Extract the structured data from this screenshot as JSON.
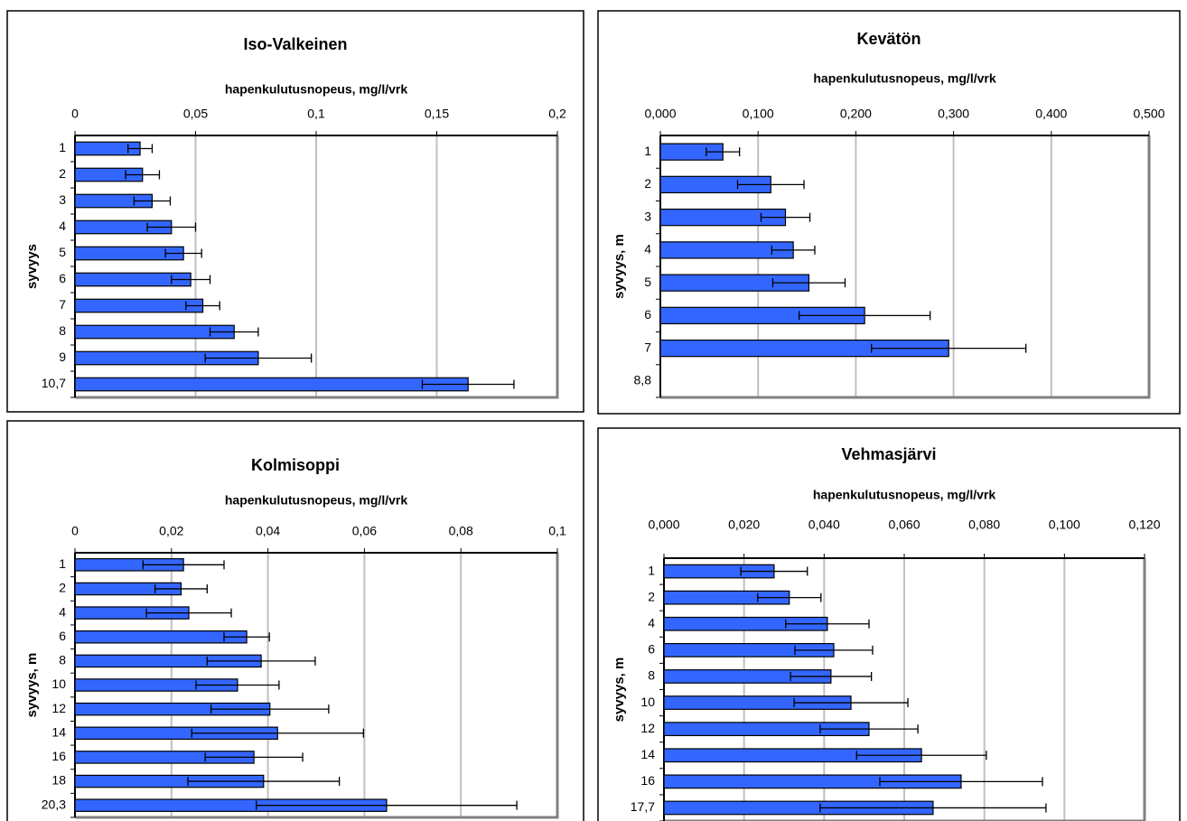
{
  "chart_data": [
    {
      "type": "bar",
      "orientation": "horizontal",
      "title": "Iso-Valkeinen",
      "x_label": "hapenkulutusnopeus,  mg/l/vrk",
      "y_label": "syvyys",
      "categories": [
        "1",
        "2",
        "3",
        "4",
        "5",
        "6",
        "7",
        "8",
        "9",
        "10,7"
      ],
      "values": [
        0.027,
        0.028,
        0.032,
        0.04,
        0.045,
        0.048,
        0.053,
        0.066,
        0.076,
        0.163
      ],
      "errors": [
        0.005,
        0.007,
        0.0075,
        0.01,
        0.0075,
        0.008,
        0.007,
        0.01,
        0.022,
        0.019
      ],
      "color": "#3366ff",
      "grid": true,
      "xlim": [
        0,
        0.2
      ],
      "xticks": [
        0,
        {
          "value": 0.05,
          "label": "0,05"
        },
        {
          "value": 0.1,
          "label": "0,1"
        },
        {
          "value": 0.15,
          "label": "0,15"
        },
        {
          "value": 0.2,
          "label": "0,2"
        }
      ]
    },
    {
      "type": "bar",
      "orientation": "horizontal",
      "title": "Kevätön",
      "x_label": "hapenkulutusnopeus,  mg/l/vrk",
      "y_label": "syvyys, m",
      "categories": [
        "1",
        "2",
        "3",
        "4",
        "5",
        "6",
        "7",
        "8,8"
      ],
      "values": [
        0.064,
        0.113,
        0.128,
        0.136,
        0.152,
        0.209,
        0.295,
        null
      ],
      "errors": [
        0.017,
        0.034,
        0.025,
        0.022,
        0.037,
        0.067,
        0.079,
        null
      ],
      "color": "#3366ff",
      "grid": true,
      "xlim": [
        0,
        0.5
      ],
      "xticks": [
        {
          "value": 0,
          "label": "0,000"
        },
        {
          "value": 0.1,
          "label": "0,100"
        },
        {
          "value": 0.2,
          "label": "0,200"
        },
        {
          "value": 0.3,
          "label": "0,300"
        },
        {
          "value": 0.4,
          "label": "0,400"
        },
        {
          "value": 0.5,
          "label": "0,500"
        }
      ]
    },
    {
      "type": "bar",
      "orientation": "horizontal",
      "title": "Kolmisoppi",
      "x_label": "hapenkulutusnopeus,  mg/l/vrk",
      "y_label": "syvyys, m",
      "categories": [
        "1",
        "2",
        "4",
        "6",
        "8",
        "10",
        "12",
        "14",
        "16",
        "18",
        "20,3"
      ],
      "values": [
        0.0225,
        0.022,
        0.0236,
        0.0356,
        0.0386,
        0.0337,
        0.0404,
        0.042,
        0.0371,
        0.0391,
        0.0646
      ],
      "errors": [
        0.0084,
        0.0054,
        0.0088,
        0.0047,
        0.0112,
        0.0086,
        0.0122,
        0.0178,
        0.0101,
        0.0157,
        0.027
      ],
      "color": "#3366ff",
      "grid": true,
      "xlim": [
        0,
        0.1
      ],
      "xticks": [
        0,
        {
          "value": 0.02,
          "label": "0,02"
        },
        {
          "value": 0.04,
          "label": "0,04"
        },
        {
          "value": 0.06,
          "label": "0,06"
        },
        {
          "value": 0.08,
          "label": "0,08"
        },
        {
          "value": 0.1,
          "label": "0,1"
        }
      ]
    },
    {
      "type": "bar",
      "orientation": "horizontal",
      "title": "Vehmasjärvi",
      "x_label": "hapenkulutusnopeus,  mg/l/vrk",
      "y_label": "syvyys, m",
      "categories": [
        "1",
        "2",
        "4",
        "6",
        "8",
        "10",
        "12",
        "14",
        "16",
        "17,7"
      ],
      "values": [
        0.0275,
        0.0313,
        0.0408,
        0.0424,
        0.0417,
        0.0467,
        0.0512,
        0.0643,
        0.0742,
        0.0672
      ],
      "errors": [
        0.0083,
        0.0079,
        0.0104,
        0.0097,
        0.0101,
        0.0142,
        0.0122,
        0.0162,
        0.0203,
        0.0282
      ],
      "color": "#3366ff",
      "grid": true,
      "xlim": [
        0,
        0.12
      ],
      "xticks": [
        {
          "value": 0,
          "label": "0,000"
        },
        {
          "value": 0.02,
          "label": "0,020"
        },
        {
          "value": 0.04,
          "label": "0,040"
        },
        {
          "value": 0.06,
          "label": "0,060"
        },
        {
          "value": 0.08,
          "label": "0,080"
        },
        {
          "value": 0.1,
          "label": "0,100"
        },
        {
          "value": 0.12,
          "label": "0,120"
        }
      ]
    }
  ]
}
